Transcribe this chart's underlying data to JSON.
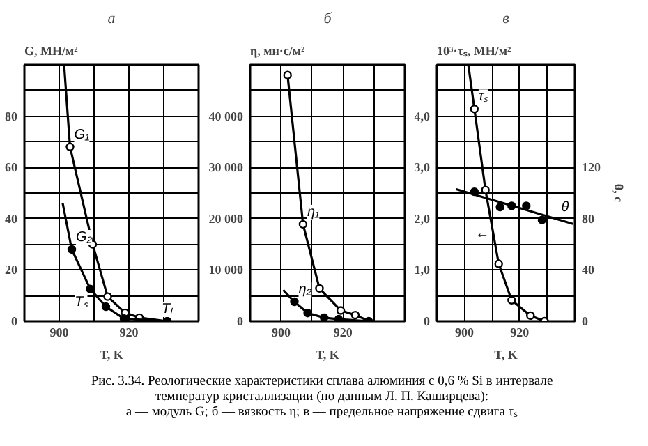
{
  "chart_data": [
    {
      "type": "line",
      "title": "а",
      "ylabel": "G, МН/м²",
      "xlabel": "T, K",
      "xlim": [
        890,
        940
      ],
      "ylim": [
        0,
        100
      ],
      "grid": true,
      "xticks": [
        {
          "value": 890,
          "label": null
        },
        900,
        {
          "value": 910,
          "label": null
        },
        920,
        {
          "value": 930,
          "label": null
        }
      ],
      "yticks": [
        0,
        {
          "value": 10,
          "label": null
        },
        20,
        {
          "value": 30,
          "label": null
        },
        40,
        {
          "value": 50,
          "label": null
        },
        60,
        {
          "value": 70,
          "label": null
        },
        80,
        {
          "value": 90,
          "label": null
        }
      ],
      "series": [
        {
          "name": "G₁",
          "color": "#000000",
          "marker": "none",
          "x": [
            901.4,
            903.1,
            909.6,
            913.9,
            918.9,
            923,
            931
          ],
          "values": [
            100,
            68,
            30,
            9.6,
            3.3,
            1.4,
            0
          ]
        },
        {
          "type": "scatter",
          "color": "#000000",
          "marker": "circle_open",
          "x": [
            903.1,
            909.6,
            913.9,
            918.9,
            923
          ],
          "values": [
            68,
            30,
            9.6,
            3.3,
            1.4
          ]
        },
        {
          "name": "G₂",
          "color": "#000000",
          "marker": "none",
          "x": [
            901,
            903.6,
            908.9,
            913.4,
            918.6,
            931
          ],
          "values": [
            46,
            28,
            12.6,
            5.7,
            1,
            0
          ]
        },
        {
          "type": "scatter",
          "color": "#000000",
          "marker": "circle",
          "x": [
            903.6,
            908.9,
            913.4,
            918.6,
            931
          ],
          "values": [
            28,
            12.6,
            5.7,
            1,
            0
          ]
        }
      ],
      "annotations": [
        {
          "text": "Tₛ",
          "x": 908.9,
          "y": 12.6
        },
        {
          "text": "Tₗ",
          "x": 931,
          "y": 0
        },
        "Рис. 3.34. Реологические характеристики сплава алюминия с 0,6 % Si в интервале",
        "температур кристаллизации (по данным Л. П. Каширцева):",
        "а — модуль G; б — вязкость η; в — предельное напряжение сдвига τₛ"
      ]
    },
    {
      "type": "line",
      "title": "б",
      "ylabel": "η, мн·с/м²",
      "xlabel": "T, K",
      "xlim": [
        890,
        940
      ],
      "ylim": [
        0,
        50000
      ],
      "grid": true,
      "xticks": [
        {
          "value": 890,
          "label": null
        },
        900,
        {
          "value": 910,
          "label": null
        },
        920,
        {
          "value": 930,
          "label": null
        }
      ],
      "yticks": [
        0,
        {
          "value": 5000,
          "label": null
        },
        {
          "value": 10000,
          "label": "10 000"
        },
        {
          "value": 15000,
          "label": null
        },
        {
          "value": 20000,
          "label": "20 000"
        },
        {
          "value": 25000,
          "label": null
        },
        {
          "value": 30000,
          "label": "30 000"
        },
        {
          "value": 35000,
          "label": null
        },
        {
          "value": 40000,
          "label": "40 000"
        },
        {
          "value": 45000,
          "label": null
        }
      ],
      "series": [
        {
          "name": "η₁",
          "color": "#000000",
          "marker": "none",
          "x": [
            902.1,
            907.1,
            912.4,
            919.3,
            924,
            928.6
          ],
          "values": [
            48000,
            18900,
            6400,
            2100,
            1200,
            0
          ]
        },
        {
          "type": "scatter",
          "color": "#000000",
          "marker": "circle_open",
          "x": [
            902.1,
            907.1,
            912.4,
            919.3,
            924
          ],
          "values": [
            48000,
            18900,
            6400,
            2100,
            1200
          ]
        },
        {
          "name": "η₂",
          "color": "#000000",
          "marker": "none",
          "x": [
            900.7,
            904.3,
            908.6,
            913.9,
            918.6,
            928.3
          ],
          "values": [
            6100,
            3800,
            1600,
            700,
            400,
            0
          ]
        },
        {
          "type": "scatter",
          "color": "#000000",
          "marker": "circle",
          "x": [
            904.3,
            908.6,
            913.9,
            918.6,
            928.3
          ],
          "values": [
            3800,
            1600,
            700,
            400,
            0
          ]
        }
      ]
    },
    {
      "type": "line",
      "title": "в",
      "ylabel": "10³·τₛ, МН/м²",
      "y2label": "θ, с",
      "xlabel": "T, K",
      "xlim": [
        890,
        940
      ],
      "ylim": [
        0,
        5
      ],
      "y2lim": [
        0,
        200
      ],
      "grid": true,
      "xticks": [
        {
          "value": 890,
          "label": null
        },
        900,
        {
          "value": 910,
          "label": null
        },
        920,
        {
          "value": 930,
          "label": null
        }
      ],
      "yticks": [
        0,
        {
          "value": 0.5,
          "label": null
        },
        {
          "value": 1,
          "label": "1,0"
        },
        {
          "value": 1.5,
          "label": null
        },
        {
          "value": 2,
          "label": "2,0"
        },
        {
          "value": 2.5,
          "label": null
        },
        {
          "value": 3,
          "label": "3,0"
        },
        {
          "value": 3.5,
          "label": null
        },
        {
          "value": 4,
          "label": "4,0"
        },
        {
          "value": 4.5,
          "label": null
        }
      ],
      "y2ticks": [
        0,
        40,
        80,
        120
      ],
      "series": [
        {
          "name": "τₛ",
          "color": "#000000",
          "marker": "none",
          "x": [
            901.4,
            903.6,
            907.6,
            912.4,
            917.1,
            923.9,
            929
          ],
          "values": [
            5,
            4.14,
            2.56,
            1.12,
            0.41,
            0.11,
            0
          ]
        },
        {
          "type": "scatter",
          "color": "#000000",
          "marker": "circle_open",
          "x": [
            903.6,
            907.6,
            912.4,
            917.1,
            923.9,
            929
          ],
          "values": [
            4.14,
            2.56,
            1.12,
            0.41,
            0.11,
            0
          ]
        },
        {
          "name": "θ",
          "axis": "y2",
          "color": "#000000",
          "marker": "none",
          "x": [
            897,
            939.3
          ],
          "values": [
            103,
            76
          ]
        },
        {
          "type": "scatter",
          "axis": "y2",
          "color": "#000000",
          "marker": "circle",
          "x": [
            903.6,
            912.9,
            917.1,
            922.4,
            928.1
          ],
          "values": [
            101,
            89,
            90,
            90,
            79
          ]
        }
      ],
      "annotations": [
        {
          "text": "←",
          "x": 910,
          "y": 1.95
        }
      ]
    }
  ]
}
